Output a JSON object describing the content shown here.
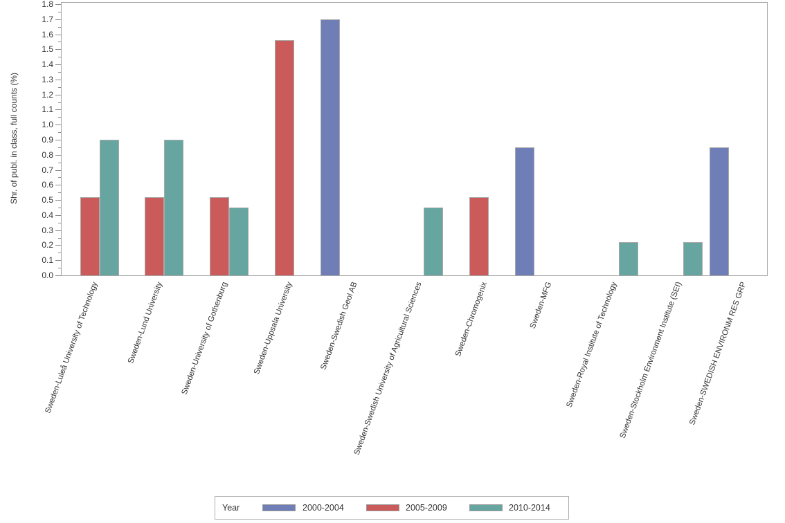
{
  "chart_data": {
    "type": "bar",
    "title": "",
    "xlabel": "",
    "ylabel": "Shr. of publ. in class, full counts (%)",
    "ylim": [
      0,
      1.8
    ],
    "ytick_major_step": 0.1,
    "ytick_minor_step": 0.05,
    "grid": false,
    "legend_title": "Year",
    "legend_position": "bottom-center",
    "bar_outline_color": "#a9a9a9",
    "axis_color": "#a6a6a6",
    "text_color": "#333333",
    "categories": [
      "Sweden-Luleå University of Technology",
      "Sweden-Lund University",
      "Sweden-University of Gothenburg",
      "Sweden-Uppsala University",
      "Sweden-Swedish Geol AB",
      "Sweden-Swedish University of Agricultural Sciences",
      "Sweden-Chromogenix",
      "Sweden-MFG",
      "Sweden-Royal Institute of Technology",
      "Sweden-Stockholm Environment Institute (SEI)",
      "Sweden-SWEDISH ENVIRONM RES GRP"
    ],
    "series": [
      {
        "name": "2000-2004",
        "color": "#6F7EB6",
        "values": [
          null,
          null,
          null,
          null,
          1.7,
          null,
          null,
          0.85,
          null,
          null,
          0.85
        ]
      },
      {
        "name": "2005-2009",
        "color": "#CB5B5B",
        "values": [
          0.52,
          0.52,
          0.52,
          1.56,
          null,
          null,
          0.52,
          null,
          null,
          null,
          null
        ]
      },
      {
        "name": "2010-2014",
        "color": "#66A5A0",
        "values": [
          0.9,
          0.9,
          0.45,
          null,
          null,
          0.45,
          null,
          null,
          0.22,
          0.22,
          null
        ]
      }
    ]
  }
}
